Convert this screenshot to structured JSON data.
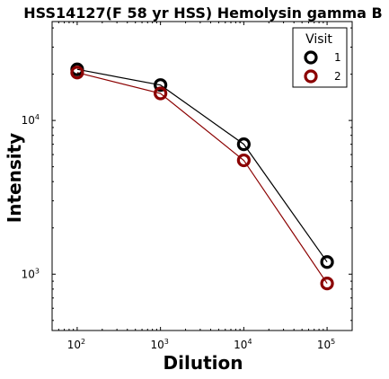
{
  "chart_data": {
    "type": "line",
    "title": "HSS14127(F 58 yr HSS) Hemolysin gamma B",
    "xlabel": "Dilution",
    "ylabel": "Intensity",
    "xscale": "log",
    "yscale": "log",
    "xlim": [
      50,
      200000
    ],
    "ylim": [
      430,
      44000
    ],
    "x": [
      100,
      1000,
      10000,
      100000
    ],
    "x_tick_labels": [
      {
        "base": "10",
        "exp": "2",
        "value": 100
      },
      {
        "base": "10",
        "exp": "3",
        "value": 1000
      },
      {
        "base": "10",
        "exp": "4",
        "value": 10000
      },
      {
        "base": "10",
        "exp": "5",
        "value": 100000
      }
    ],
    "y_tick_labels": [
      {
        "base": "10",
        "exp": "3",
        "value": 1000
      },
      {
        "base": "10",
        "exp": "4",
        "value": 10000
      }
    ],
    "legend": {
      "title": "Visit",
      "position": "top-right"
    },
    "series": [
      {
        "name": "1",
        "color": "#000000",
        "values": [
          21500,
          17000,
          7000,
          1200
        ]
      },
      {
        "name": "2",
        "color": "#8b0000",
        "values": [
          20500,
          15000,
          5500,
          870
        ]
      }
    ]
  }
}
